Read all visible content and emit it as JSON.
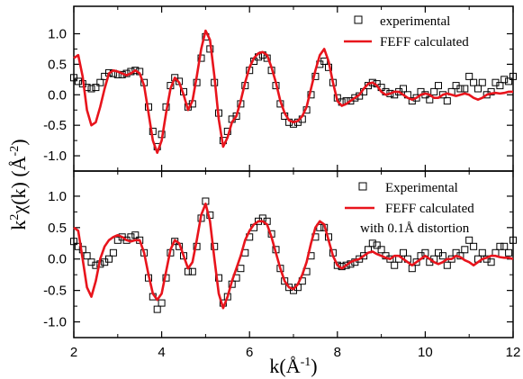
{
  "chart_data": [
    {
      "type": "scatter",
      "panel": "top",
      "xlim": [
        2,
        12
      ],
      "ylim": [
        -1.25,
        1.45
      ],
      "x_ticks": [
        2,
        4,
        6,
        8,
        10,
        12
      ],
      "y_ticks": [
        -1.0,
        -0.5,
        0.0,
        0.5,
        1.0
      ],
      "y_tick_labels": [
        "-1.0",
        "-0.5",
        "0.0",
        "0.5",
        "1.0"
      ],
      "legend_position": "top-right",
      "grid": false,
      "series": [
        {
          "name": "experimental",
          "marker": "open-square",
          "color": "#000000",
          "x": [
            2.0,
            2.1,
            2.2,
            2.3,
            2.4,
            2.5,
            2.6,
            2.7,
            2.8,
            2.9,
            3.0,
            3.1,
            3.2,
            3.3,
            3.4,
            3.5,
            3.6,
            3.7,
            3.8,
            3.9,
            4.0,
            4.1,
            4.2,
            4.3,
            4.4,
            4.5,
            4.6,
            4.7,
            4.8,
            4.9,
            5.0,
            5.1,
            5.2,
            5.3,
            5.4,
            5.5,
            5.6,
            5.7,
            5.8,
            5.9,
            6.0,
            6.1,
            6.2,
            6.3,
            6.4,
            6.5,
            6.6,
            6.7,
            6.8,
            6.9,
            7.0,
            7.1,
            7.2,
            7.3,
            7.4,
            7.5,
            7.6,
            7.7,
            7.8,
            7.9,
            8.0,
            8.1,
            8.2,
            8.3,
            8.4,
            8.5,
            8.6,
            8.7,
            8.8,
            8.9,
            9.0,
            9.1,
            9.2,
            9.3,
            9.4,
            9.5,
            9.6,
            9.7,
            9.8,
            9.9,
            10.0,
            10.1,
            10.2,
            10.3,
            10.4,
            10.5,
            10.6,
            10.7,
            10.8,
            10.9,
            11.0,
            11.1,
            11.2,
            11.3,
            11.4,
            11.5,
            11.6,
            11.7,
            11.8,
            11.9,
            12.0
          ],
          "y": [
            0.28,
            0.22,
            0.18,
            0.12,
            0.1,
            0.12,
            0.2,
            0.3,
            0.36,
            0.35,
            0.33,
            0.33,
            0.35,
            0.38,
            0.4,
            0.38,
            0.2,
            -0.2,
            -0.6,
            -0.85,
            -0.65,
            -0.2,
            0.15,
            0.28,
            0.22,
            0.05,
            -0.2,
            -0.15,
            0.2,
            0.6,
            0.95,
            0.75,
            0.2,
            -0.3,
            -0.75,
            -0.6,
            -0.4,
            -0.35,
            -0.15,
            0.15,
            0.4,
            0.55,
            0.62,
            0.65,
            0.6,
            0.4,
            0.15,
            -0.15,
            -0.35,
            -0.45,
            -0.48,
            -0.45,
            -0.4,
            -0.25,
            0.0,
            0.3,
            0.5,
            0.55,
            0.45,
            0.2,
            -0.05,
            -0.12,
            -0.1,
            -0.1,
            -0.05,
            -0.02,
            0.05,
            0.15,
            0.2,
            0.18,
            0.12,
            0.05,
            0.02,
            0.0,
            0.05,
            0.1,
            0.0,
            -0.1,
            -0.05,
            0.05,
            0.0,
            -0.08,
            0.05,
            0.15,
            0.0,
            -0.1,
            0.05,
            0.15,
            0.1,
            0.1,
            0.3,
            0.2,
            0.1,
            0.2,
            0.0,
            0.05,
            0.2,
            0.15,
            0.25,
            0.22,
            0.3
          ]
        },
        {
          "name": "FEFF calculated",
          "marker": "line",
          "color": "#e8141c",
          "x": [
            2.0,
            2.1,
            2.2,
            2.3,
            2.4,
            2.5,
            2.6,
            2.7,
            2.8,
            2.9,
            3.0,
            3.1,
            3.2,
            3.3,
            3.4,
            3.5,
            3.6,
            3.7,
            3.8,
            3.9,
            4.0,
            4.1,
            4.2,
            4.3,
            4.4,
            4.5,
            4.6,
            4.7,
            4.8,
            4.9,
            5.0,
            5.1,
            5.2,
            5.3,
            5.4,
            5.5,
            5.6,
            5.7,
            5.8,
            5.9,
            6.0,
            6.1,
            6.2,
            6.3,
            6.4,
            6.5,
            6.6,
            6.7,
            6.8,
            6.9,
            7.0,
            7.1,
            7.2,
            7.3,
            7.4,
            7.5,
            7.6,
            7.7,
            7.8,
            7.9,
            8.0,
            8.1,
            8.2,
            8.3,
            8.4,
            8.5,
            8.6,
            8.7,
            8.8,
            8.9,
            9.0,
            9.1,
            9.2,
            9.3,
            9.4,
            9.5,
            9.6,
            9.7,
            9.8,
            9.9,
            10.0,
            10.1,
            10.2,
            10.3,
            10.4,
            10.5,
            10.6,
            10.7,
            10.8,
            10.9,
            11.0,
            11.1,
            11.2,
            11.3,
            11.4,
            11.5,
            11.6,
            11.7,
            11.8,
            11.9,
            12.0
          ],
          "y": [
            0.6,
            0.65,
            0.3,
            -0.25,
            -0.5,
            -0.45,
            -0.2,
            0.1,
            0.35,
            0.4,
            0.38,
            0.35,
            0.32,
            0.35,
            0.4,
            0.35,
            0.15,
            -0.3,
            -0.75,
            -0.95,
            -0.75,
            -0.3,
            0.1,
            0.28,
            0.2,
            0.0,
            -0.25,
            -0.1,
            0.3,
            0.75,
            1.05,
            0.9,
            0.3,
            -0.4,
            -0.85,
            -0.7,
            -0.45,
            -0.35,
            -0.1,
            0.2,
            0.45,
            0.6,
            0.68,
            0.7,
            0.65,
            0.45,
            0.2,
            -0.1,
            -0.3,
            -0.42,
            -0.45,
            -0.43,
            -0.35,
            -0.2,
            0.1,
            0.4,
            0.65,
            0.75,
            0.55,
            0.2,
            -0.1,
            -0.18,
            -0.15,
            -0.1,
            -0.05,
            0.0,
            0.1,
            0.18,
            0.2,
            0.15,
            0.05,
            0.0,
            0.02,
            0.05,
            0.05,
            0.0,
            -0.05,
            -0.08,
            -0.05,
            0.0,
            0.02,
            0.0,
            -0.05,
            -0.05,
            0.0,
            0.02,
            0.0,
            -0.02,
            0.0,
            0.02,
            0.0,
            -0.05,
            -0.08,
            -0.05,
            0.0,
            0.02,
            0.03,
            0.02,
            0.03,
            0.05,
            0.05
          ]
        }
      ]
    },
    {
      "type": "scatter",
      "panel": "bottom",
      "xlim": [
        2,
        12
      ],
      "ylim": [
        -1.25,
        1.4
      ],
      "x_ticks": [
        2,
        4,
        6,
        8,
        10,
        12
      ],
      "x_tick_labels": [
        "2",
        "4",
        "6",
        "8",
        "10",
        "12"
      ],
      "y_ticks": [
        -1.0,
        -0.5,
        0.0,
        0.5,
        1.0
      ],
      "y_tick_labels": [
        "-1.0",
        "-0.5",
        "0.0",
        "0.5",
        "1.0"
      ],
      "legend_position": "top-right",
      "grid": false,
      "series": [
        {
          "name": "Experimental",
          "marker": "open-square",
          "color": "#000000",
          "x": [
            2.0,
            2.1,
            2.2,
            2.3,
            2.4,
            2.5,
            2.6,
            2.7,
            2.8,
            2.9,
            3.0,
            3.1,
            3.2,
            3.3,
            3.4,
            3.5,
            3.6,
            3.7,
            3.8,
            3.9,
            4.0,
            4.1,
            4.2,
            4.3,
            4.4,
            4.5,
            4.6,
            4.7,
            4.8,
            4.9,
            5.0,
            5.1,
            5.2,
            5.3,
            5.4,
            5.5,
            5.6,
            5.7,
            5.8,
            5.9,
            6.0,
            6.1,
            6.2,
            6.3,
            6.4,
            6.5,
            6.6,
            6.7,
            6.8,
            6.9,
            7.0,
            7.1,
            7.2,
            7.3,
            7.4,
            7.5,
            7.6,
            7.7,
            7.8,
            7.9,
            8.0,
            8.1,
            8.2,
            8.3,
            8.4,
            8.5,
            8.6,
            8.7,
            8.8,
            8.9,
            9.0,
            9.1,
            9.2,
            9.3,
            9.4,
            9.5,
            9.6,
            9.7,
            9.8,
            9.9,
            10.0,
            10.1,
            10.2,
            10.3,
            10.4,
            10.5,
            10.6,
            10.7,
            10.8,
            10.9,
            11.0,
            11.1,
            11.2,
            11.3,
            11.4,
            11.5,
            11.6,
            11.7,
            11.8,
            11.9,
            12.0
          ],
          "y": [
            0.28,
            0.2,
            0.15,
            0.05,
            -0.05,
            -0.1,
            -0.08,
            -0.05,
            0.0,
            0.1,
            0.3,
            0.35,
            0.3,
            0.35,
            0.38,
            0.3,
            0.1,
            -0.3,
            -0.6,
            -0.8,
            -0.7,
            -0.3,
            0.1,
            0.28,
            0.2,
            0.05,
            -0.2,
            -0.2,
            0.2,
            0.65,
            0.92,
            0.7,
            0.2,
            -0.3,
            -0.7,
            -0.6,
            -0.4,
            -0.3,
            -0.15,
            0.1,
            0.35,
            0.5,
            0.6,
            0.65,
            0.6,
            0.4,
            0.15,
            -0.15,
            -0.35,
            -0.45,
            -0.5,
            -0.45,
            -0.35,
            -0.2,
            0.05,
            0.35,
            0.5,
            0.5,
            0.35,
            0.1,
            -0.1,
            -0.12,
            -0.1,
            -0.08,
            -0.05,
            0.0,
            0.05,
            0.15,
            0.25,
            0.22,
            0.15,
            0.05,
            0.0,
            -0.1,
            0.0,
            0.1,
            0.0,
            -0.15,
            -0.05,
            0.05,
            0.1,
            -0.05,
            0.0,
            0.1,
            0.05,
            -0.1,
            0.0,
            0.1,
            0.05,
            0.15,
            0.3,
            0.2,
            0.0,
            0.1,
            0.0,
            -0.05,
            0.1,
            0.2,
            0.2,
            0.1,
            0.3
          ]
        },
        {
          "name": "FEFF calculated\nwith 0.1Å distortion",
          "marker": "line",
          "color": "#e8141c",
          "x": [
            2.0,
            2.1,
            2.2,
            2.3,
            2.4,
            2.5,
            2.6,
            2.7,
            2.8,
            2.9,
            3.0,
            3.1,
            3.2,
            3.3,
            3.4,
            3.5,
            3.6,
            3.7,
            3.8,
            3.9,
            4.0,
            4.1,
            4.2,
            4.3,
            4.4,
            4.5,
            4.6,
            4.7,
            4.8,
            4.9,
            5.0,
            5.1,
            5.2,
            5.3,
            5.4,
            5.5,
            5.6,
            5.7,
            5.8,
            5.9,
            6.0,
            6.1,
            6.2,
            6.3,
            6.4,
            6.5,
            6.6,
            6.7,
            6.8,
            6.9,
            7.0,
            7.1,
            7.2,
            7.3,
            7.4,
            7.5,
            7.6,
            7.7,
            7.8,
            7.9,
            8.0,
            8.1,
            8.2,
            8.3,
            8.4,
            8.5,
            8.6,
            8.7,
            8.8,
            8.9,
            9.0,
            9.1,
            9.2,
            9.3,
            9.4,
            9.5,
            9.6,
            9.7,
            9.8,
            9.9,
            10.0,
            10.1,
            10.2,
            10.3,
            10.4,
            10.5,
            10.6,
            10.7,
            10.8,
            10.9,
            11.0,
            11.1,
            11.2,
            11.3,
            11.4,
            11.5,
            11.6,
            11.7,
            11.8,
            11.9,
            12.0
          ],
          "y": [
            0.5,
            0.45,
            0.0,
            -0.45,
            -0.6,
            -0.35,
            0.0,
            0.2,
            0.3,
            0.35,
            0.38,
            0.35,
            0.3,
            0.28,
            0.3,
            0.3,
            0.1,
            -0.25,
            -0.55,
            -0.65,
            -0.55,
            -0.2,
            0.15,
            0.3,
            0.25,
            0.05,
            -0.15,
            -0.05,
            0.3,
            0.7,
            0.88,
            0.6,
            0.0,
            -0.55,
            -0.78,
            -0.6,
            -0.35,
            -0.15,
            0.05,
            0.3,
            0.45,
            0.55,
            0.6,
            0.6,
            0.55,
            0.35,
            0.1,
            -0.15,
            -0.35,
            -0.45,
            -0.48,
            -0.4,
            -0.25,
            -0.05,
            0.25,
            0.5,
            0.6,
            0.55,
            0.3,
            0.05,
            -0.1,
            -0.15,
            -0.1,
            -0.05,
            -0.02,
            0.0,
            0.05,
            0.1,
            0.12,
            0.08,
            0.05,
            0.02,
            0.0,
            0.05,
            0.05,
            0.0,
            -0.05,
            -0.1,
            -0.05,
            0.0,
            0.05,
            0.0,
            -0.05,
            -0.08,
            -0.05,
            0.0,
            0.0,
            0.05,
            0.03,
            -0.02,
            -0.05,
            -0.1,
            -0.05,
            0.0,
            0.02,
            0.05,
            0.05,
            0.03,
            0.02,
            0.02,
            0.0
          ]
        }
      ]
    }
  ],
  "axes": {
    "y_title_parts": {
      "k": "k",
      "k_sup": "2",
      "chi": "χ(k) (Å",
      "chi_sup": "-2",
      "close": ")"
    },
    "x_title_parts": {
      "k": "k(Å",
      "k_sup": "-1",
      "close": ")"
    }
  },
  "legends": {
    "top": {
      "experimental": "experimental",
      "feff": "FEFF calculated"
    },
    "bottom": {
      "experimental": "Experimental",
      "feff_line1": "FEFF calculated",
      "feff_line2": "with 0.1Å distortion"
    }
  },
  "colors": {
    "experimental": "#000000",
    "feff": "#e8141c",
    "axis": "#000000",
    "background": "#ffffff"
  }
}
